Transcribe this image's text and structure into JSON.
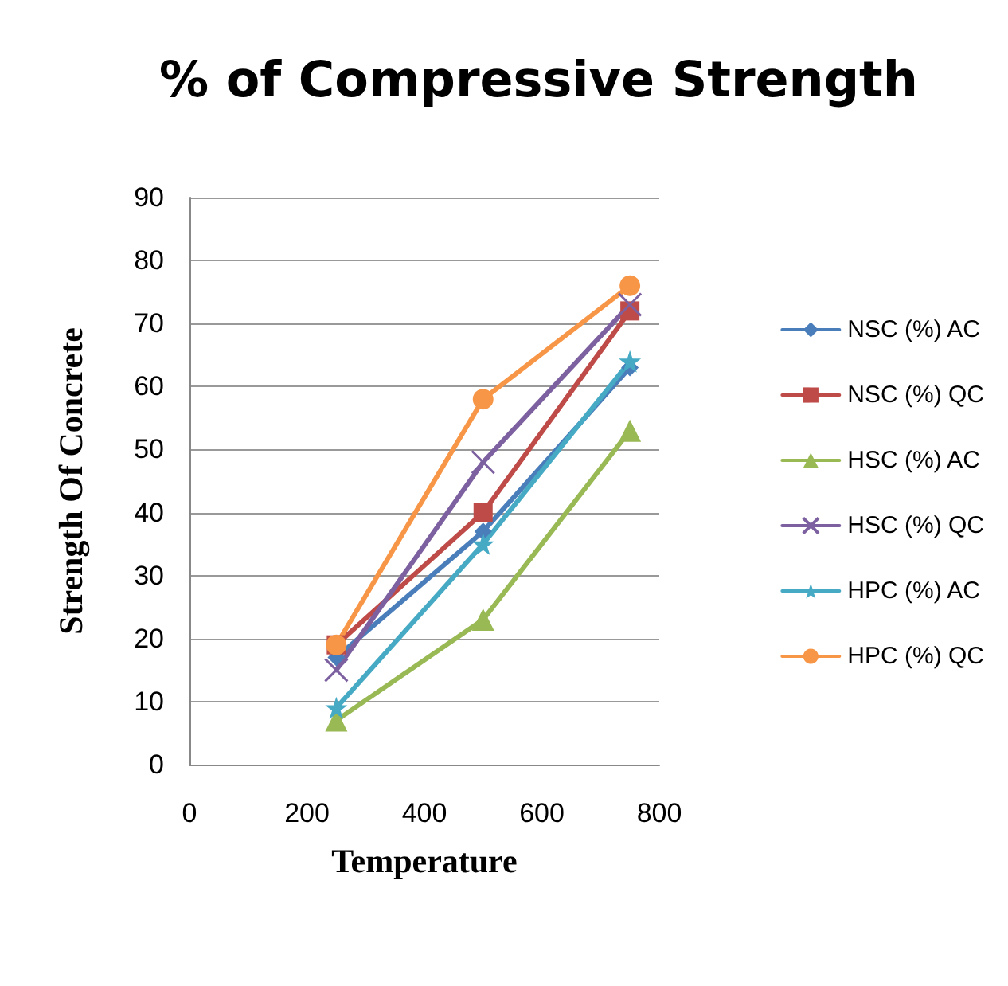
{
  "chart_data": {
    "type": "line",
    "title": "% of Compressive Strength",
    "xlabel": "Temperature",
    "ylabel": "Strength Of Concrete",
    "x": [
      250,
      500,
      750
    ],
    "xlim": [
      0,
      800
    ],
    "xticks": [
      0,
      200,
      400,
      600,
      800
    ],
    "ylim": [
      0,
      90
    ],
    "yticks": [
      0,
      10,
      20,
      30,
      40,
      50,
      60,
      70,
      80,
      90
    ],
    "grid": "y",
    "legend": "right",
    "series": [
      {
        "name": "NSC (%) AC",
        "color": "#4a7ebb",
        "marker": "diamond",
        "values": [
          17,
          37,
          63
        ]
      },
      {
        "name": "NSC (%) QC",
        "color": "#be4b48",
        "marker": "square",
        "values": [
          19,
          40,
          72
        ]
      },
      {
        "name": "HSC (%) AC",
        "color": "#98b954",
        "marker": "triangle",
        "values": [
          7,
          23,
          53
        ]
      },
      {
        "name": "HSC (%) QC",
        "color": "#7d60a0",
        "marker": "cross",
        "values": [
          15,
          48,
          73
        ]
      },
      {
        "name": "HPC (%) AC",
        "color": "#46aac5",
        "marker": "star",
        "values": [
          9,
          35,
          64
        ]
      },
      {
        "name": "HPC (%) QC",
        "color": "#f79646",
        "marker": "circle",
        "values": [
          19,
          58,
          76
        ]
      }
    ]
  }
}
